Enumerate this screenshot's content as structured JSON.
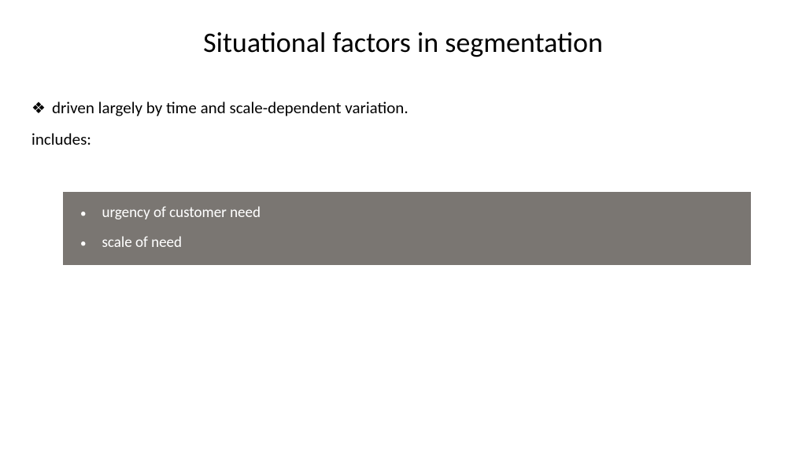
{
  "slide": {
    "title": "Situational factors in segmentation",
    "intro_bullet_glyph": "❖",
    "intro_text": "driven largely by time and scale-dependent variation.",
    "includes_label": "includes:",
    "box": {
      "background_color": "#7a7672",
      "text_color": "#ffffff",
      "bullet_glyph": "•",
      "items": [
        {
          "text": "urgency of customer need"
        },
        {
          "text": "scale of need"
        }
      ]
    }
  },
  "styling": {
    "background_color": "#ffffff",
    "title_fontsize": 36,
    "body_fontsize": 21,
    "box_fontsize": 19,
    "title_color": "#000000",
    "body_color": "#000000"
  }
}
